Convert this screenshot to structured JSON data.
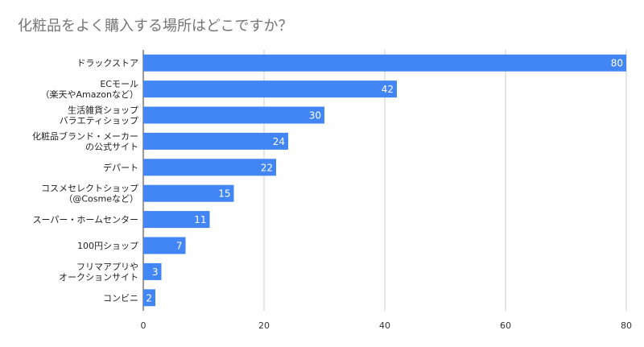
{
  "chart_data": {
    "type": "bar",
    "orientation": "horizontal",
    "title": "化粧品をよく購入する場所はどこですか？",
    "categories": [
      "ドラックストア",
      "ECモール\n（楽天やAmazonなど）",
      "生活雑貨ショップ\nバラエティショップ",
      "化粧品ブランド・メーカー\nの公式サイト",
      "デパート",
      "コスメセレクトショップ\n（@Cosmeなど）",
      "スーパー・ホームセンター",
      "100円ショップ",
      "フリマアプリや\nオークションサイト",
      "コンビニ"
    ],
    "values": [
      80,
      42,
      30,
      24,
      22,
      15,
      11,
      7,
      3,
      2
    ],
    "xlim": [
      0,
      80
    ],
    "xticks": [
      0,
      20,
      40,
      60,
      80
    ],
    "grid": true,
    "bar_color": "#4285f4",
    "data_labels": true
  }
}
